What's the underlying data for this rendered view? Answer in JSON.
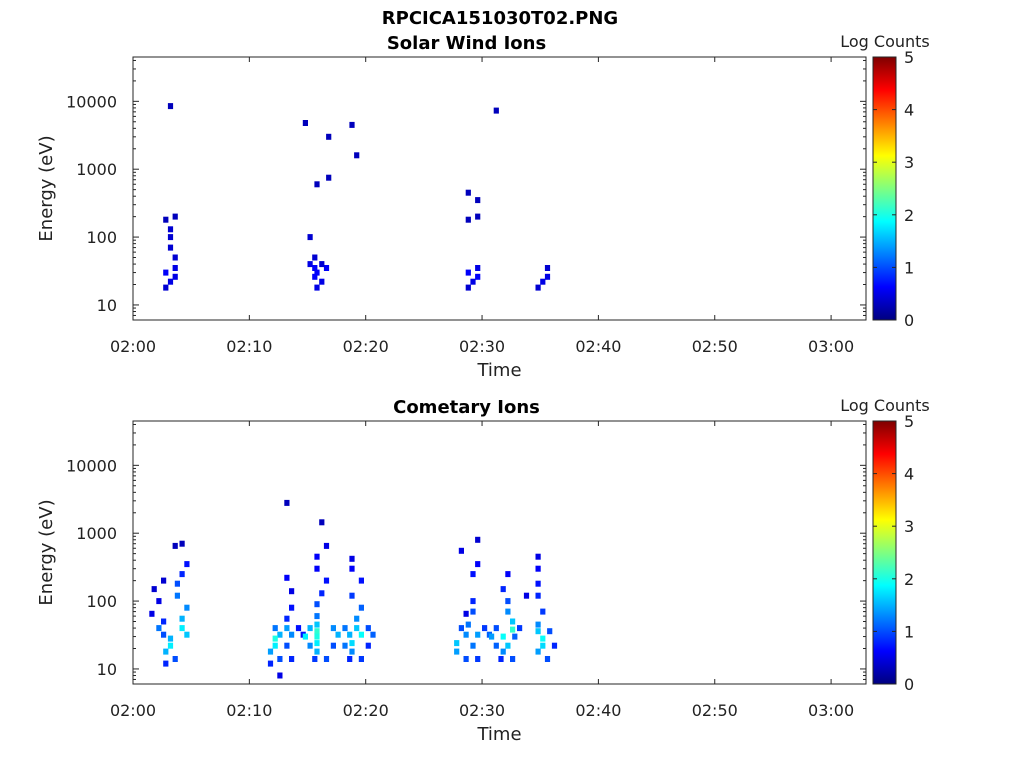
{
  "figure_title": "RPCICA151030T02.PNG",
  "chart_data": [
    {
      "type": "heatmap",
      "title": "Solar Wind Ions",
      "xlabel": "Time",
      "ylabel": "Energy (eV)",
      "x_range": [
        "02:00",
        "03:03"
      ],
      "x_ticks": [
        "02:00",
        "02:10",
        "02:20",
        "02:30",
        "02:40",
        "02:50",
        "03:00"
      ],
      "y_scale": "log",
      "ylim": [
        6,
        45000
      ],
      "y_ticks": [
        "10",
        "100",
        "1000",
        "10000"
      ],
      "colorbar": {
        "label": "Log Counts",
        "range": [
          0,
          5
        ],
        "ticks": [
          "0",
          "1",
          "2",
          "3",
          "4",
          "5"
        ],
        "colormap": "jet"
      },
      "cells": [
        [
          "02:03",
          8500,
          0.3
        ],
        [
          "02:15",
          4800,
          0.3
        ],
        [
          "02:17",
          3000,
          0.3
        ],
        [
          "02:19",
          4500,
          0.3
        ],
        [
          "02:19",
          1600,
          0.3
        ],
        [
          "02:16",
          600,
          0.3
        ],
        [
          "02:17",
          750,
          0.3
        ],
        [
          "02:31",
          7300,
          0.3
        ],
        [
          "02:29",
          450,
          0.3
        ],
        [
          "02:29",
          350,
          0.3
        ],
        [
          "02:29",
          200,
          0.3
        ],
        [
          "02:29",
          180,
          0.3
        ],
        [
          "02:03",
          200,
          0.3
        ],
        [
          "02:03",
          180,
          0.3
        ],
        [
          "02:03",
          130,
          0.4
        ],
        [
          "02:03",
          100,
          0.4
        ],
        [
          "02:03",
          70,
          0.4
        ],
        [
          "02:03",
          50,
          0.4
        ],
        [
          "02:03",
          35,
          0.5
        ],
        [
          "02:03",
          30,
          0.6
        ],
        [
          "02:03",
          26,
          0.5
        ],
        [
          "02:03",
          22,
          0.5
        ],
        [
          "02:03",
          18,
          0.4
        ],
        [
          "02:15",
          100,
          0.4
        ],
        [
          "02:15",
          50,
          0.4
        ],
        [
          "02:15",
          40,
          0.5
        ],
        [
          "02:15",
          35,
          0.6
        ],
        [
          "02:16",
          35,
          0.6
        ],
        [
          "02:16",
          30,
          0.6
        ],
        [
          "02:15",
          26,
          0.6
        ],
        [
          "02:16",
          22,
          0.5
        ],
        [
          "02:16",
          18,
          0.5
        ],
        [
          "02:16",
          40,
          0.4
        ],
        [
          "02:29",
          35,
          0.5
        ],
        [
          "02:29",
          30,
          0.6
        ],
        [
          "02:29",
          26,
          0.6
        ],
        [
          "02:29",
          22,
          0.5
        ],
        [
          "02:29",
          18,
          0.4
        ],
        [
          "02:35",
          35,
          0.4
        ],
        [
          "02:35",
          26,
          0.5
        ],
        [
          "02:35",
          22,
          0.5
        ],
        [
          "02:35",
          18,
          0.4
        ]
      ]
    },
    {
      "type": "heatmap",
      "title": "Cometary Ions",
      "xlabel": "Time",
      "ylabel": "Energy (eV)",
      "x_range": [
        "02:00",
        "03:03"
      ],
      "x_ticks": [
        "02:00",
        "02:10",
        "02:20",
        "02:30",
        "02:40",
        "02:50",
        "03:00"
      ],
      "y_scale": "log",
      "ylim": [
        6,
        45000
      ],
      "y_ticks": [
        "10",
        "100",
        "1000",
        "10000"
      ],
      "colorbar": {
        "label": "Log Counts",
        "range": [
          0,
          5
        ],
        "ticks": [
          "0",
          "1",
          "2",
          "3",
          "4",
          "5"
        ],
        "colormap": "jet"
      },
      "cells": [
        [
          "02:13",
          2800,
          0.3
        ],
        [
          "02:16",
          1450,
          0.3
        ],
        [
          "02:04",
          700,
          0.3
        ],
        [
          "02:03",
          650,
          0.3
        ],
        [
          "02:02",
          200,
          0.4
        ],
        [
          "02:02",
          150,
          0.4
        ],
        [
          "02:02",
          100,
          0.5
        ],
        [
          "02:01",
          65,
          0.5
        ],
        [
          "02:02",
          50,
          0.8
        ],
        [
          "02:02",
          40,
          1.2
        ],
        [
          "02:02",
          32,
          1.0
        ],
        [
          "02:03",
          28,
          1.5
        ],
        [
          "02:03",
          22,
          1.8
        ],
        [
          "02:03",
          18,
          1.5
        ],
        [
          "02:03",
          14,
          1.0
        ],
        [
          "02:03",
          12,
          0.8
        ],
        [
          "02:04",
          350,
          0.7
        ],
        [
          "02:04",
          250,
          0.8
        ],
        [
          "02:04",
          180,
          1.0
        ],
        [
          "02:04",
          120,
          1.2
        ],
        [
          "02:04",
          80,
          1.3
        ],
        [
          "02:04",
          55,
          1.5
        ],
        [
          "02:04",
          40,
          1.8
        ],
        [
          "02:04",
          32,
          1.6
        ],
        [
          "02:12",
          40,
          1.2
        ],
        [
          "02:12",
          32,
          1.5
        ],
        [
          "02:12",
          28,
          2.0
        ],
        [
          "02:12",
          22,
          1.8
        ],
        [
          "02:12",
          18,
          1.4
        ],
        [
          "02:12",
          14,
          1.0
        ],
        [
          "02:12",
          12,
          0.8
        ],
        [
          "02:12",
          8,
          0.5
        ],
        [
          "02:13",
          220,
          0.6
        ],
        [
          "02:13",
          140,
          0.5
        ],
        [
          "02:13",
          80,
          0.7
        ],
        [
          "02:13",
          55,
          0.8
        ],
        [
          "02:13",
          40,
          1.4
        ],
        [
          "02:13",
          32,
          1.3
        ],
        [
          "02:13",
          22,
          1.0
        ],
        [
          "02:13",
          14,
          0.8
        ],
        [
          "02:14",
          32,
          0.7
        ],
        [
          "02:14",
          40,
          0.7
        ],
        [
          "02:16",
          650,
          0.5
        ],
        [
          "02:16",
          450,
          0.6
        ],
        [
          "02:16",
          300,
          0.6
        ],
        [
          "02:16",
          200,
          0.7
        ],
        [
          "02:16",
          130,
          0.8
        ],
        [
          "02:16",
          90,
          1.0
        ],
        [
          "02:16",
          60,
          1.2
        ],
        [
          "02:16",
          45,
          1.6
        ],
        [
          "02:16",
          36,
          2.1
        ],
        [
          "02:16",
          30,
          2.0
        ],
        [
          "02:16",
          24,
          1.8
        ],
        [
          "02:16",
          18,
          1.5
        ],
        [
          "02:16",
          14,
          1.0
        ],
        [
          "02:15",
          40,
          1.5
        ],
        [
          "02:15",
          30,
          1.8
        ],
        [
          "02:15",
          22,
          1.3
        ],
        [
          "02:15",
          14,
          0.9
        ],
        [
          "02:17",
          40,
          1.3
        ],
        [
          "02:17",
          32,
          1.5
        ],
        [
          "02:17",
          22,
          1.0
        ],
        [
          "02:19",
          420,
          0.5
        ],
        [
          "02:19",
          300,
          0.6
        ],
        [
          "02:19",
          200,
          0.7
        ],
        [
          "02:19",
          120,
          0.9
        ],
        [
          "02:19",
          80,
          1.1
        ],
        [
          "02:19",
          55,
          1.3
        ],
        [
          "02:19",
          40,
          1.6
        ],
        [
          "02:19",
          32,
          1.9
        ],
        [
          "02:19",
          24,
          1.7
        ],
        [
          "02:19",
          18,
          1.3
        ],
        [
          "02:19",
          14,
          0.9
        ],
        [
          "02:18",
          40,
          1.2
        ],
        [
          "02:18",
          32,
          1.5
        ],
        [
          "02:18",
          22,
          1.2
        ],
        [
          "02:18",
          14,
          0.8
        ],
        [
          "02:20",
          40,
          1.0
        ],
        [
          "02:20",
          32,
          1.1
        ],
        [
          "02:20",
          22,
          0.8
        ],
        [
          "02:29",
          800,
          0.4
        ],
        [
          "02:28",
          550,
          0.5
        ],
        [
          "02:29",
          350,
          0.6
        ],
        [
          "02:29",
          250,
          0.7
        ],
        [
          "02:28",
          65,
          0.5
        ],
        [
          "02:28",
          40,
          1.0
        ],
        [
          "02:28",
          32,
          1.3
        ],
        [
          "02:28",
          24,
          1.6
        ],
        [
          "02:28",
          18,
          1.4
        ],
        [
          "02:28",
          14,
          1.0
        ],
        [
          "02:29",
          100,
          0.8
        ],
        [
          "02:29",
          70,
          1.0
        ],
        [
          "02:29",
          45,
          1.2
        ],
        [
          "02:29",
          32,
          1.4
        ],
        [
          "02:29",
          22,
          1.2
        ],
        [
          "02:29",
          14,
          0.9
        ],
        [
          "02:30",
          40,
          0.9
        ],
        [
          "02:30",
          32,
          1.1
        ],
        [
          "02:32",
          250,
          0.6
        ],
        [
          "02:32",
          150,
          0.8
        ],
        [
          "02:32",
          100,
          1.0
        ],
        [
          "02:32",
          70,
          1.3
        ],
        [
          "02:32",
          50,
          1.6
        ],
        [
          "02:32",
          38,
          2.1
        ],
        [
          "02:32",
          30,
          1.9
        ],
        [
          "02:32",
          22,
          1.6
        ],
        [
          "02:32",
          18,
          1.3
        ],
        [
          "02:32",
          14,
          1.0
        ],
        [
          "02:31",
          40,
          1.0
        ],
        [
          "02:31",
          30,
          1.4
        ],
        [
          "02:31",
          22,
          1.1
        ],
        [
          "02:31",
          14,
          0.8
        ],
        [
          "02:33",
          40,
          0.9
        ],
        [
          "02:33",
          30,
          1.1
        ],
        [
          "02:34",
          120,
          0.5
        ],
        [
          "02:35",
          450,
          0.5
        ],
        [
          "02:35",
          300,
          0.6
        ],
        [
          "02:35",
          180,
          0.7
        ],
        [
          "02:35",
          120,
          0.8
        ],
        [
          "02:35",
          70,
          0.9
        ],
        [
          "02:35",
          45,
          1.3
        ],
        [
          "02:35",
          36,
          1.6
        ],
        [
          "02:35",
          28,
          1.9
        ],
        [
          "02:35",
          22,
          1.7
        ],
        [
          "02:35",
          18,
          1.4
        ],
        [
          "02:35",
          14,
          1.0
        ],
        [
          "02:36",
          36,
          1.0
        ],
        [
          "02:36",
          22,
          0.8
        ]
      ]
    }
  ]
}
